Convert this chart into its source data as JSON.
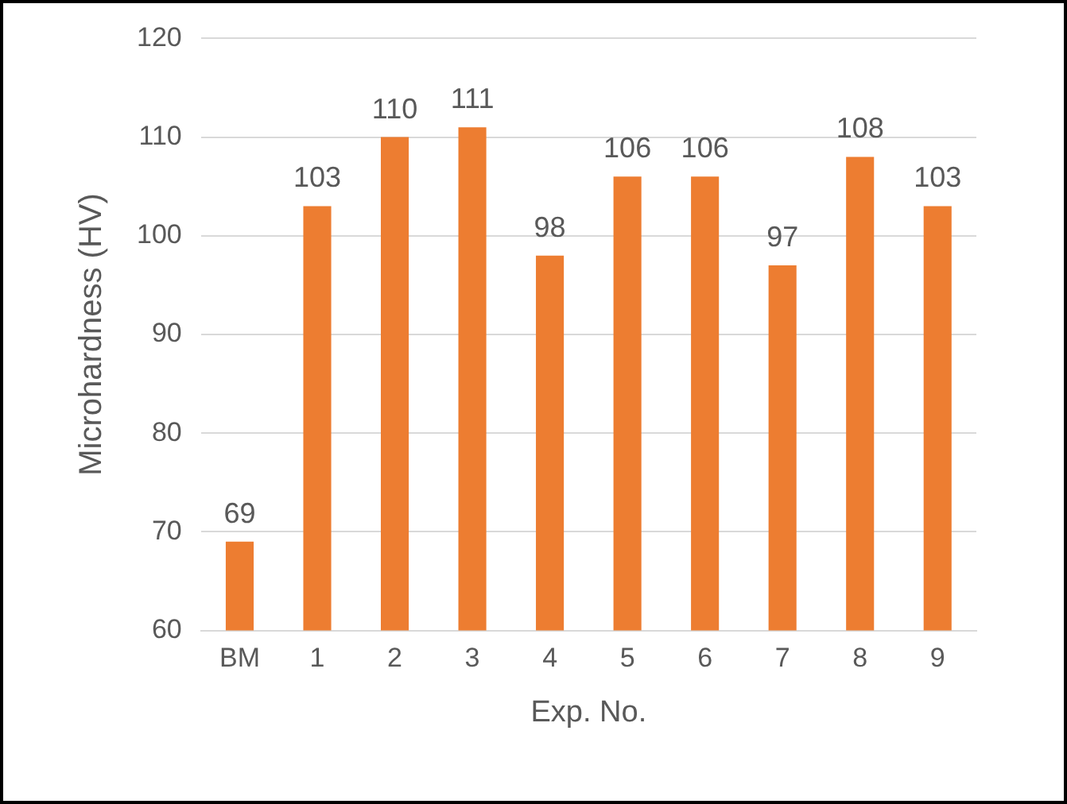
{
  "chart_data": {
    "type": "bar",
    "xlabel": "Exp. No.",
    "ylabel": "Microhardness (HV)",
    "categories": [
      "BM",
      "1",
      "2",
      "3",
      "4",
      "5",
      "6",
      "7",
      "8",
      "9"
    ],
    "values": [
      69,
      103,
      110,
      111,
      98,
      106,
      106,
      97,
      108,
      103
    ],
    "color": "#ed7d31",
    "ylim": [
      60,
      120
    ],
    "yticks": [
      60,
      70,
      80,
      90,
      100,
      110,
      120
    ],
    "grid": "y",
    "data_labels": true,
    "legend": false
  }
}
